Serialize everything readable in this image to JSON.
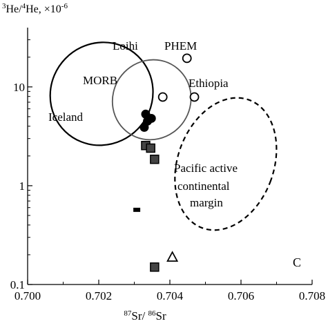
{
  "chart_data": {
    "type": "scatter",
    "title": "",
    "panel_label": "C",
    "y_label": {
      "base": "3He/4He, ×10",
      "exp": "-6"
    },
    "x_label": {
      "num": "Sr",
      "num_sup": "87",
      "den": "Sr",
      "den_sup": "86"
    },
    "x_ticks": [
      "0.700",
      "0.702",
      "0.704",
      "0.706",
      "0.708"
    ],
    "y_ticks": [
      "0.1",
      "1",
      "10"
    ],
    "xlim": [
      0.7,
      0.708
    ],
    "ylim_log10": [
      -1,
      1.6
    ],
    "y_scale": "log",
    "grid": false,
    "annotations": [
      "Loihi",
      "PHEM",
      "MORB",
      "Ethiopia",
      "Iceland",
      "Pacific active",
      "continental",
      "margin"
    ],
    "fields": [
      {
        "name": "Loihi / MORB / Iceland",
        "style": "solid",
        "center_x": 0.70208,
        "center_log10y": 0.93,
        "rx": 0.00142,
        "ry_log10": 0.53,
        "tilt_deg": 44
      },
      {
        "name": "PHEM / Ethiopia",
        "style": "solid-grey",
        "center_x": 0.70349,
        "center_log10y": 0.87,
        "rx": 0.00109,
        "ry_log10": 0.41,
        "tilt_deg": 34
      },
      {
        "name": "Pacific active continental margin",
        "style": "dashed",
        "center_x": 0.70557,
        "center_log10y": 0.22,
        "rx": 0.00135,
        "ry_log10": 0.69,
        "tilt_deg": 20
      }
    ],
    "series": [
      {
        "marker": "filled-circle",
        "x": [
          0.70332,
          0.70348,
          0.70337,
          0.70328
        ],
        "y": [
          5.3,
          4.8,
          4.5,
          3.9
        ]
      },
      {
        "marker": "filled-square",
        "x": [
          0.70332,
          0.70346,
          0.70357,
          0.70357
        ],
        "y": [
          2.55,
          2.4,
          1.85,
          0.15
        ]
      },
      {
        "marker": "filled-square-small",
        "x": [
          0.70307
        ],
        "y": [
          0.57
        ]
      },
      {
        "marker": "open-circle",
        "x": [
          0.7038,
          0.70448,
          0.70469
        ],
        "y": [
          7.9,
          19.5,
          7.9
        ]
      },
      {
        "marker": "open-triangle",
        "x": [
          0.70407
        ],
        "y": [
          0.19
        ]
      }
    ]
  }
}
